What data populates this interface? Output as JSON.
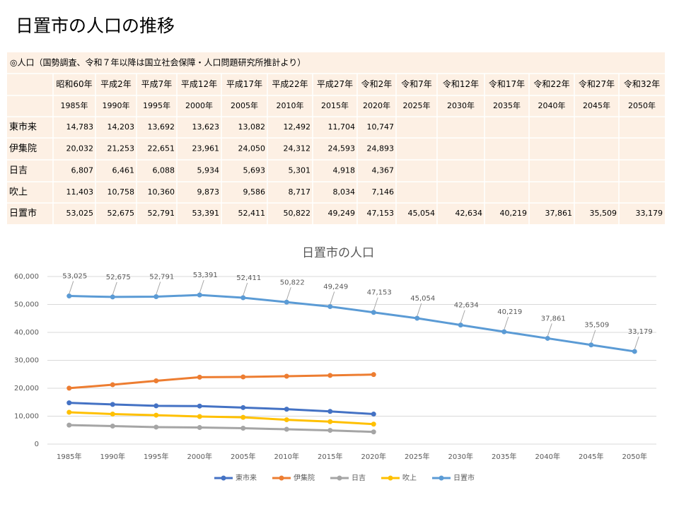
{
  "title": "日置市の人口の推移",
  "table": {
    "caption": "◎人口（国勢調査、令和７年以降は国立社会保障・人口問題研究所推計より）",
    "era_row": [
      "昭和60年",
      "平成2年",
      "平成7年",
      "平成12年",
      "平成17年",
      "平成22年",
      "平成27年",
      "令和2年",
      "令和7年",
      "令和12年",
      "令和17年",
      "令和22年",
      "令和27年",
      "令和32年"
    ],
    "year_row": [
      "1985年",
      "1990年",
      "1995年",
      "2000年",
      "2005年",
      "2010年",
      "2015年",
      "2020年",
      "2025年",
      "2030年",
      "2035年",
      "2040年",
      "2045年",
      "2050年"
    ],
    "rows": [
      {
        "name": "東市来",
        "values": [
          "14,783",
          "14,203",
          "13,692",
          "13,623",
          "13,082",
          "12,492",
          "11,704",
          "10,747"
        ]
      },
      {
        "name": "伊集院",
        "values": [
          "20,032",
          "21,253",
          "22,651",
          "23,961",
          "24,050",
          "24,312",
          "24,593",
          "24,893"
        ]
      },
      {
        "name": "日吉",
        "values": [
          "6,807",
          "6,461",
          "6,088",
          "5,934",
          "5,693",
          "5,301",
          "4,918",
          "4,367"
        ]
      },
      {
        "name": "吹上",
        "values": [
          "11,403",
          "10,758",
          "10,360",
          "9,873",
          "9,586",
          "8,717",
          "8,034",
          "7,146"
        ]
      },
      {
        "name": "日置市",
        "values": [
          "53,025",
          "52,675",
          "52,791",
          "53,391",
          "52,411",
          "50,822",
          "49,249",
          "47,153",
          "45,054",
          "42,634",
          "40,219",
          "37,861",
          "35,509",
          "33,179"
        ]
      }
    ]
  },
  "chart_data": {
    "type": "line",
    "title": "日置市の人口",
    "categories": [
      "1985年",
      "1990年",
      "1995年",
      "2000年",
      "2005年",
      "2010年",
      "2015年",
      "2020年",
      "2025年",
      "2030年",
      "2035年",
      "2040年",
      "2045年",
      "2050年"
    ],
    "series": [
      {
        "name": "東市来",
        "color": "#4472c4",
        "values": [
          14783,
          14203,
          13692,
          13623,
          13082,
          12492,
          11704,
          10747,
          null,
          null,
          null,
          null,
          null,
          null
        ]
      },
      {
        "name": "伊集院",
        "color": "#ed7d31",
        "values": [
          20032,
          21253,
          22651,
          23961,
          24050,
          24312,
          24593,
          24893,
          null,
          null,
          null,
          null,
          null,
          null
        ]
      },
      {
        "name": "日吉",
        "color": "#a5a5a5",
        "values": [
          6807,
          6461,
          6088,
          5934,
          5693,
          5301,
          4918,
          4367,
          null,
          null,
          null,
          null,
          null,
          null
        ]
      },
      {
        "name": "吹上",
        "color": "#ffc000",
        "values": [
          11403,
          10758,
          10360,
          9873,
          9586,
          8717,
          8034,
          7146,
          null,
          null,
          null,
          null,
          null,
          null
        ]
      },
      {
        "name": "日置市",
        "color": "#5b9bd5",
        "values": [
          53025,
          52675,
          52791,
          53391,
          52411,
          50822,
          49249,
          47153,
          45054,
          42634,
          40219,
          37861,
          35509,
          33179
        ],
        "value_labels": [
          "53,025",
          "52,675",
          "52,791",
          "53,391",
          "52,411",
          "50,822",
          "49,249",
          "47,153",
          "45,054",
          "42,634",
          "40,219",
          "37,861",
          "35,509",
          "33,179"
        ]
      }
    ],
    "ylim": [
      0,
      60000
    ],
    "yticks": [
      0,
      {
        "value": 10000,
        "label": "10,000"
      },
      {
        "value": 20000,
        "label": "20,000"
      },
      {
        "value": 30000,
        "label": "30,000"
      },
      {
        "value": 40000,
        "label": "40,000"
      },
      {
        "value": 50000,
        "label": "50,000"
      },
      {
        "value": 60000,
        "label": "60,000"
      }
    ],
    "grid": true,
    "legend": "bottom"
  }
}
